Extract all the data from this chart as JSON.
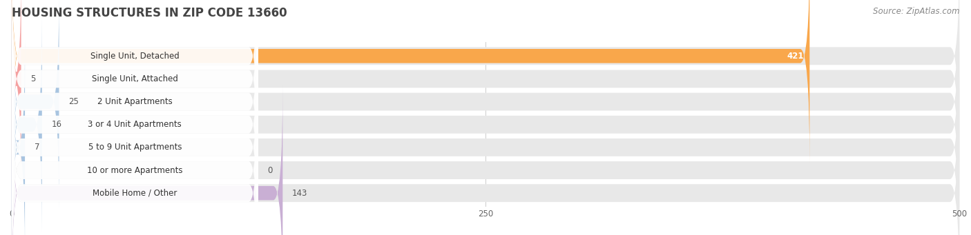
{
  "title": "HOUSING STRUCTURES IN ZIP CODE 13660",
  "source": "Source: ZipAtlas.com",
  "categories": [
    "Single Unit, Detached",
    "Single Unit, Attached",
    "2 Unit Apartments",
    "3 or 4 Unit Apartments",
    "5 to 9 Unit Apartments",
    "10 or more Apartments",
    "Mobile Home / Other"
  ],
  "values": [
    421,
    5,
    25,
    16,
    7,
    0,
    143
  ],
  "bar_colors": [
    "#f9a74b",
    "#f4a0a0",
    "#a8c4e0",
    "#a8c4e0",
    "#a8c4e0",
    "#a8c4e0",
    "#c9afd4"
  ],
  "bg_track_color": "#e8e8e8",
  "xlim_max": 500,
  "xticks": [
    0,
    250,
    500
  ],
  "background_color": "#ffffff",
  "title_fontsize": 12,
  "label_fontsize": 8.5,
  "value_fontsize": 8.5,
  "source_fontsize": 8.5
}
